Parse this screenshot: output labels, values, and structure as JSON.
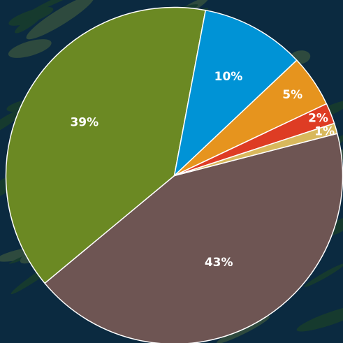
{
  "colors": {
    "camo_dark": "#0b2a40",
    "camo_mid": "#163a2e",
    "camo_light": "#2e4a3e",
    "slice_stroke": "#ffffff"
  },
  "chart_data": {
    "type": "pie",
    "title": "",
    "slices": [
      {
        "value": 43,
        "label": "43%",
        "color": "#6e5553"
      },
      {
        "value": 39,
        "label": "39%",
        "color": "#6b8923"
      },
      {
        "value": 10,
        "label": "10%",
        "color": "#0093d6"
      },
      {
        "value": 5,
        "label": "5%",
        "color": "#e6941e"
      },
      {
        "value": 2,
        "label": "2%",
        "color": "#de3c24"
      },
      {
        "value": 1,
        "label": "1%",
        "color": "#d8b85c"
      }
    ],
    "start_angle_deg": -14.5,
    "direction": "clockwise",
    "legend": "none"
  }
}
